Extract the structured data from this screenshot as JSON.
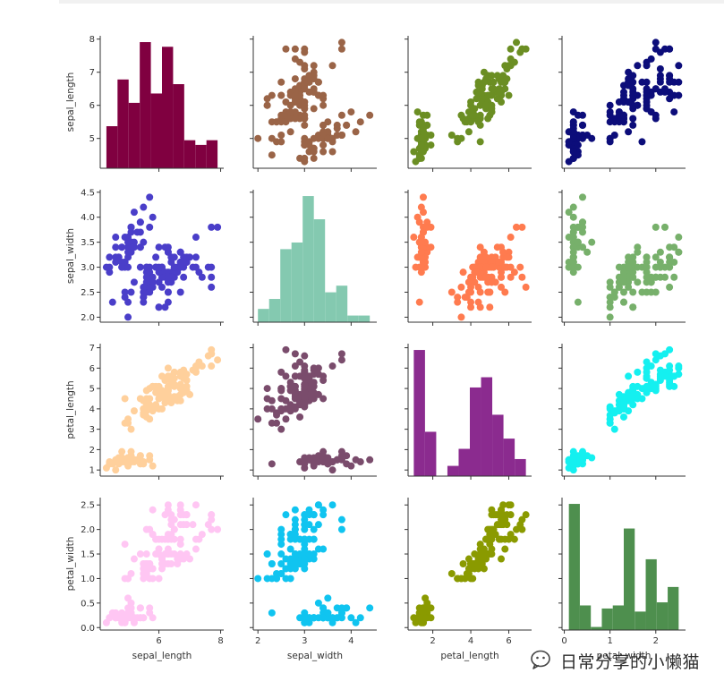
{
  "chart_data": {
    "type": "scatter",
    "variables": [
      "sepal_length",
      "sepal_width",
      "petal_length",
      "petal_width"
    ],
    "axes": {
      "sepal_length": {
        "range": [
          4.1,
          8.1
        ],
        "ticks": [
          6,
          8
        ],
        "y_ticks": [
          5,
          6,
          7,
          8
        ]
      },
      "sepal_width": {
        "range": [
          1.9,
          4.55
        ],
        "ticks": [
          2,
          3,
          4
        ],
        "y_ticks": [
          2.0,
          2.5,
          3.0,
          3.5,
          4.0,
          4.5
        ]
      },
      "petal_length": {
        "range": [
          0.7,
          7.2
        ],
        "ticks": [
          2,
          4,
          6
        ],
        "y_ticks": [
          1,
          2,
          3,
          4,
          5,
          6,
          7
        ]
      },
      "petal_width": {
        "range": [
          -0.05,
          2.65
        ],
        "ticks": [
          0,
          1,
          2
        ],
        "y_ticks": [
          0.0,
          0.5,
          1.0,
          1.5,
          2.0,
          2.5
        ]
      }
    },
    "cell_colors": [
      [
        "#800040",
        "#9a6447",
        "#6b8e23",
        "#0c0d7a"
      ],
      [
        "#4a3ec9",
        "#84c9b0",
        "#ff7b4f",
        "#77b06b"
      ],
      [
        "#ffd09c",
        "#7a4c6c",
        "#8b2b8f",
        "#14f0f0"
      ],
      [
        "#ffc6f3",
        "#10c4f0",
        "#8a9a00",
        "#4e8f4e"
      ]
    ],
    "histograms": {
      "sepal_length": {
        "edges": [
          4.3,
          4.66,
          5.02,
          5.38,
          5.74,
          6.1,
          6.46,
          6.82,
          7.18,
          7.54,
          7.9
        ],
        "counts": [
          9,
          19,
          14,
          27,
          16,
          26,
          18,
          6,
          5,
          6
        ]
      },
      "sepal_width": {
        "edges": [
          2.0,
          2.24,
          2.48,
          2.72,
          2.96,
          3.2,
          3.44,
          3.68,
          3.92,
          4.16,
          4.4
        ],
        "counts": [
          4,
          7,
          22,
          24,
          38,
          31,
          9,
          11,
          2,
          2
        ]
      },
      "petal_length": {
        "edges": [
          1.0,
          1.59,
          2.18,
          2.77,
          3.36,
          3.95,
          4.54,
          5.13,
          5.72,
          6.31,
          6.9
        ],
        "counts": [
          37,
          13,
          0,
          3,
          8,
          26,
          29,
          18,
          11,
          5
        ]
      },
      "petal_width": {
        "edges": [
          0.1,
          0.34,
          0.58,
          0.82,
          1.06,
          1.3,
          1.54,
          1.78,
          2.02,
          2.26,
          2.5
        ],
        "counts": [
          41,
          8,
          1,
          7,
          8,
          33,
          6,
          23,
          9,
          14
        ]
      }
    },
    "points": [
      [
        5.1,
        3.5,
        1.4,
        0.2
      ],
      [
        4.9,
        3.0,
        1.4,
        0.2
      ],
      [
        4.7,
        3.2,
        1.3,
        0.2
      ],
      [
        4.6,
        3.1,
        1.5,
        0.2
      ],
      [
        5.0,
        3.6,
        1.4,
        0.2
      ],
      [
        5.4,
        3.9,
        1.7,
        0.4
      ],
      [
        4.6,
        3.4,
        1.4,
        0.3
      ],
      [
        5.0,
        3.4,
        1.5,
        0.2
      ],
      [
        4.4,
        2.9,
        1.4,
        0.2
      ],
      [
        4.9,
        3.1,
        1.5,
        0.1
      ],
      [
        5.4,
        3.7,
        1.5,
        0.2
      ],
      [
        4.8,
        3.4,
        1.6,
        0.2
      ],
      [
        4.8,
        3.0,
        1.4,
        0.1
      ],
      [
        4.3,
        3.0,
        1.1,
        0.1
      ],
      [
        5.8,
        4.0,
        1.2,
        0.2
      ],
      [
        5.7,
        4.4,
        1.5,
        0.4
      ],
      [
        5.4,
        3.9,
        1.3,
        0.4
      ],
      [
        5.1,
        3.5,
        1.4,
        0.3
      ],
      [
        5.7,
        3.8,
        1.7,
        0.3
      ],
      [
        5.1,
        3.8,
        1.5,
        0.3
      ],
      [
        5.4,
        3.4,
        1.7,
        0.2
      ],
      [
        5.1,
        3.7,
        1.5,
        0.4
      ],
      [
        4.6,
        3.6,
        1.0,
        0.2
      ],
      [
        5.1,
        3.3,
        1.7,
        0.5
      ],
      [
        4.8,
        3.4,
        1.9,
        0.2
      ],
      [
        5.0,
        3.0,
        1.6,
        0.2
      ],
      [
        5.0,
        3.4,
        1.6,
        0.4
      ],
      [
        5.2,
        3.5,
        1.5,
        0.2
      ],
      [
        5.2,
        3.4,
        1.4,
        0.2
      ],
      [
        4.7,
        3.2,
        1.6,
        0.2
      ],
      [
        4.8,
        3.1,
        1.6,
        0.2
      ],
      [
        5.4,
        3.4,
        1.5,
        0.4
      ],
      [
        5.2,
        4.1,
        1.5,
        0.1
      ],
      [
        5.5,
        4.2,
        1.4,
        0.2
      ],
      [
        4.9,
        3.1,
        1.5,
        0.2
      ],
      [
        5.0,
        3.2,
        1.2,
        0.2
      ],
      [
        5.5,
        3.5,
        1.3,
        0.2
      ],
      [
        4.9,
        3.6,
        1.4,
        0.1
      ],
      [
        4.4,
        3.0,
        1.3,
        0.2
      ],
      [
        5.1,
        3.4,
        1.5,
        0.2
      ],
      [
        5.0,
        3.5,
        1.3,
        0.3
      ],
      [
        4.5,
        2.3,
        1.3,
        0.3
      ],
      [
        4.4,
        3.2,
        1.3,
        0.2
      ],
      [
        5.0,
        3.5,
        1.6,
        0.6
      ],
      [
        5.1,
        3.8,
        1.9,
        0.4
      ],
      [
        4.8,
        3.0,
        1.4,
        0.3
      ],
      [
        5.1,
        3.8,
        1.6,
        0.2
      ],
      [
        4.6,
        3.2,
        1.4,
        0.2
      ],
      [
        5.3,
        3.7,
        1.5,
        0.2
      ],
      [
        5.0,
        3.3,
        1.4,
        0.2
      ],
      [
        7.0,
        3.2,
        4.7,
        1.4
      ],
      [
        6.4,
        3.2,
        4.5,
        1.5
      ],
      [
        6.9,
        3.1,
        4.9,
        1.5
      ],
      [
        5.5,
        2.3,
        4.0,
        1.3
      ],
      [
        6.5,
        2.8,
        4.6,
        1.5
      ],
      [
        5.7,
        2.8,
        4.5,
        1.3
      ],
      [
        6.3,
        3.3,
        4.7,
        1.6
      ],
      [
        4.9,
        2.4,
        3.3,
        1.0
      ],
      [
        6.6,
        2.9,
        4.6,
        1.3
      ],
      [
        5.2,
        2.7,
        3.9,
        1.4
      ],
      [
        5.0,
        2.0,
        3.5,
        1.0
      ],
      [
        5.9,
        3.0,
        4.2,
        1.5
      ],
      [
        6.0,
        2.2,
        4.0,
        1.0
      ],
      [
        6.1,
        2.9,
        4.7,
        1.4
      ],
      [
        5.6,
        2.9,
        3.6,
        1.3
      ],
      [
        6.7,
        3.1,
        4.4,
        1.4
      ],
      [
        5.6,
        3.0,
        4.5,
        1.5
      ],
      [
        5.8,
        2.7,
        4.1,
        1.0
      ],
      [
        6.2,
        2.2,
        4.5,
        1.5
      ],
      [
        5.6,
        2.5,
        3.9,
        1.1
      ],
      [
        5.9,
        3.2,
        4.8,
        1.8
      ],
      [
        6.1,
        2.8,
        4.0,
        1.3
      ],
      [
        6.3,
        2.5,
        4.9,
        1.5
      ],
      [
        6.1,
        2.8,
        4.7,
        1.2
      ],
      [
        6.4,
        2.9,
        4.3,
        1.3
      ],
      [
        6.6,
        3.0,
        4.4,
        1.4
      ],
      [
        6.8,
        2.8,
        4.8,
        1.4
      ],
      [
        6.7,
        3.0,
        5.0,
        1.7
      ],
      [
        6.0,
        2.9,
        4.5,
        1.5
      ],
      [
        5.7,
        2.6,
        3.5,
        1.0
      ],
      [
        5.5,
        2.4,
        3.8,
        1.1
      ],
      [
        5.5,
        2.4,
        3.7,
        1.0
      ],
      [
        5.8,
        2.7,
        3.9,
        1.2
      ],
      [
        6.0,
        2.7,
        5.1,
        1.6
      ],
      [
        5.4,
        3.0,
        4.5,
        1.5
      ],
      [
        6.0,
        3.4,
        4.5,
        1.6
      ],
      [
        6.7,
        3.1,
        4.7,
        1.5
      ],
      [
        6.3,
        2.3,
        4.4,
        1.3
      ],
      [
        5.6,
        3.0,
        4.1,
        1.3
      ],
      [
        5.5,
        2.5,
        4.0,
        1.3
      ],
      [
        5.5,
        2.6,
        4.4,
        1.2
      ],
      [
        6.1,
        3.0,
        4.6,
        1.4
      ],
      [
        5.8,
        2.6,
        4.0,
        1.2
      ],
      [
        5.0,
        2.3,
        3.3,
        1.0
      ],
      [
        5.6,
        2.7,
        4.2,
        1.3
      ],
      [
        5.7,
        3.0,
        4.2,
        1.2
      ],
      [
        5.7,
        2.9,
        4.2,
        1.3
      ],
      [
        6.2,
        2.9,
        4.3,
        1.3
      ],
      [
        5.1,
        2.5,
        3.0,
        1.1
      ],
      [
        5.7,
        2.8,
        4.1,
        1.3
      ],
      [
        6.3,
        3.3,
        6.0,
        2.5
      ],
      [
        5.8,
        2.7,
        5.1,
        1.9
      ],
      [
        7.1,
        3.0,
        5.9,
        2.1
      ],
      [
        6.3,
        2.9,
        5.6,
        1.8
      ],
      [
        6.5,
        3.0,
        5.8,
        2.2
      ],
      [
        7.6,
        3.0,
        6.6,
        2.1
      ],
      [
        4.9,
        2.5,
        4.5,
        1.7
      ],
      [
        7.3,
        2.9,
        6.3,
        1.8
      ],
      [
        6.7,
        2.5,
        5.8,
        1.8
      ],
      [
        7.2,
        3.6,
        6.1,
        2.5
      ],
      [
        6.5,
        3.2,
        5.1,
        2.0
      ],
      [
        6.4,
        2.7,
        5.3,
        1.9
      ],
      [
        6.8,
        3.0,
        5.5,
        2.1
      ],
      [
        5.7,
        2.5,
        5.0,
        2.0
      ],
      [
        5.8,
        2.8,
        5.1,
        2.4
      ],
      [
        6.4,
        3.2,
        5.3,
        2.3
      ],
      [
        6.5,
        3.0,
        5.5,
        1.8
      ],
      [
        7.7,
        3.8,
        6.7,
        2.2
      ],
      [
        7.7,
        2.6,
        6.9,
        2.3
      ],
      [
        6.0,
        2.2,
        5.0,
        1.5
      ],
      [
        6.9,
        3.2,
        5.7,
        2.3
      ],
      [
        5.6,
        2.8,
        4.9,
        2.0
      ],
      [
        7.7,
        2.8,
        6.7,
        2.0
      ],
      [
        6.3,
        2.7,
        4.9,
        1.8
      ],
      [
        6.7,
        3.3,
        5.7,
        2.1
      ],
      [
        7.2,
        3.2,
        6.0,
        1.8
      ],
      [
        6.2,
        2.8,
        4.8,
        1.8
      ],
      [
        6.1,
        3.0,
        4.9,
        1.8
      ],
      [
        6.4,
        2.8,
        5.6,
        2.1
      ],
      [
        7.2,
        3.0,
        5.8,
        1.6
      ],
      [
        7.4,
        2.8,
        6.1,
        1.9
      ],
      [
        7.9,
        3.8,
        6.4,
        2.0
      ],
      [
        6.4,
        2.8,
        5.6,
        2.2
      ],
      [
        6.3,
        2.8,
        5.1,
        1.5
      ],
      [
        6.1,
        2.6,
        5.6,
        1.4
      ],
      [
        7.7,
        3.0,
        6.1,
        2.3
      ],
      [
        6.3,
        3.4,
        5.6,
        2.4
      ],
      [
        6.4,
        3.1,
        5.5,
        1.8
      ],
      [
        6.0,
        3.0,
        4.8,
        1.8
      ],
      [
        6.9,
        3.1,
        5.4,
        2.1
      ],
      [
        6.7,
        3.1,
        5.6,
        2.4
      ],
      [
        6.9,
        3.1,
        5.1,
        2.3
      ],
      [
        5.8,
        2.7,
        5.1,
        1.9
      ],
      [
        6.8,
        3.2,
        5.9,
        2.3
      ],
      [
        6.7,
        3.3,
        5.7,
        2.5
      ],
      [
        6.7,
        3.0,
        5.2,
        2.3
      ],
      [
        6.3,
        2.5,
        5.0,
        1.9
      ],
      [
        6.5,
        3.0,
        5.2,
        2.0
      ],
      [
        6.2,
        3.4,
        5.4,
        2.3
      ],
      [
        5.9,
        3.0,
        5.1,
        1.8
      ]
    ]
  },
  "watermark": {
    "text": "日常分享的小懒猫",
    "icon": "wechat-bubble-icon"
  }
}
